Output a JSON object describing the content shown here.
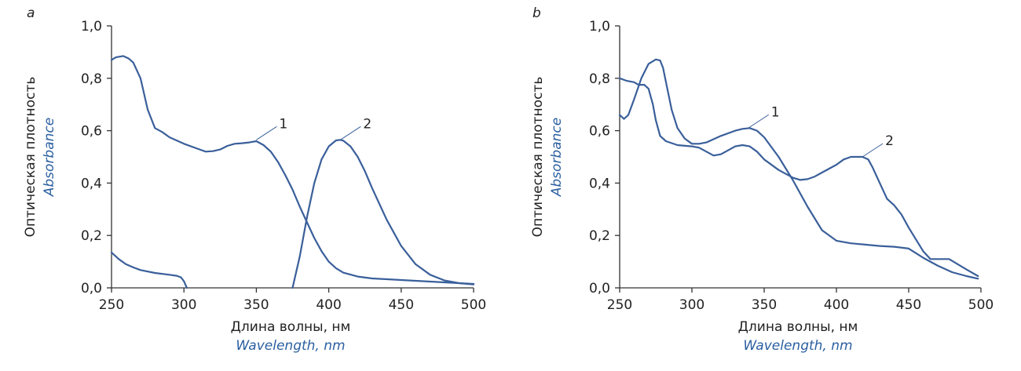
{
  "chart_data": [
    {
      "type": "line",
      "panel_label": "a",
      "xlabel": "Длина волны, нм",
      "xlabel_en": "Wavelength, nm",
      "ylabel": "Оптическая плотность",
      "ylabel_en": "Absorbance",
      "xlim": [
        250,
        500
      ],
      "ylim": [
        0,
        1
      ],
      "xticks": [
        250,
        300,
        350,
        400,
        450,
        500
      ],
      "xtick_labels": [
        "250",
        "300",
        "350",
        "400",
        "450",
        "500"
      ],
      "yticks": [
        0,
        0.2,
        0.4,
        0.6,
        0.8,
        1.0
      ],
      "ytick_labels": [
        "0,0",
        "0,2",
        "0,4",
        "0,6",
        "0,8",
        "1,0"
      ],
      "series": [
        {
          "name": "1",
          "label_at": [
            350,
            0.565
          ],
          "x": [
            250,
            253,
            258,
            262,
            265,
            270,
            275,
            280,
            285,
            290,
            300,
            310,
            315,
            320,
            325,
            330,
            335,
            340,
            345,
            350,
            355,
            360,
            365,
            370,
            375,
            380,
            385,
            390,
            395,
            400,
            405,
            410,
            420,
            430,
            450,
            470,
            490,
            500
          ],
          "y": [
            0.87,
            0.88,
            0.885,
            0.875,
            0.86,
            0.8,
            0.68,
            0.61,
            0.595,
            0.575,
            0.55,
            0.53,
            0.52,
            0.522,
            0.528,
            0.542,
            0.55,
            0.552,
            0.555,
            0.56,
            0.545,
            0.52,
            0.48,
            0.43,
            0.375,
            0.31,
            0.25,
            0.19,
            0.14,
            0.1,
            0.075,
            0.058,
            0.043,
            0.036,
            0.03,
            0.024,
            0.018,
            0.015
          ]
        },
        {
          "name": "2",
          "label_at": [
            408,
            0.565
          ],
          "x": [
            375,
            380,
            385,
            390,
            395,
            400,
            405,
            408,
            410,
            415,
            420,
            425,
            430,
            440,
            450,
            460,
            470,
            480,
            490,
            500
          ],
          "y": [
            0.0,
            0.12,
            0.27,
            0.4,
            0.49,
            0.54,
            0.563,
            0.565,
            0.562,
            0.54,
            0.5,
            0.445,
            0.38,
            0.26,
            0.16,
            0.09,
            0.05,
            0.028,
            0.018,
            0.013
          ]
        },
        {
          "name": "",
          "x": [
            250,
            255,
            260,
            265,
            270,
            280,
            290,
            295,
            298,
            300,
            302
          ],
          "y": [
            0.135,
            0.11,
            0.09,
            0.078,
            0.068,
            0.057,
            0.05,
            0.046,
            0.04,
            0.025,
            0.0
          ]
        }
      ]
    },
    {
      "type": "line",
      "panel_label": "b",
      "xlabel": "Длина волны, нм",
      "xlabel_en": "Wavelength, nm",
      "ylabel": "Оптическая плотность",
      "ylabel_en": "Absorbance",
      "xlim": [
        250,
        500
      ],
      "ylim": [
        0,
        1
      ],
      "xticks": [
        250,
        300,
        350,
        400,
        450,
        500
      ],
      "xtick_labels": [
        "250",
        "300",
        "350",
        "400",
        "450",
        "500"
      ],
      "yticks": [
        0,
        0.2,
        0.4,
        0.6,
        0.8,
        1.0
      ],
      "ytick_labels": [
        "0,0",
        "0,2",
        "0,4",
        "0,6",
        "0,8",
        "1,0"
      ],
      "series": [
        {
          "name": "1",
          "label_at": [
            339,
            0.61
          ],
          "x": [
            250,
            253,
            256,
            260,
            265,
            270,
            275,
            278,
            280,
            283,
            286,
            290,
            295,
            300,
            305,
            310,
            320,
            330,
            335,
            340,
            345,
            350,
            360,
            370,
            380,
            390,
            400,
            410,
            420,
            430,
            440,
            450,
            460,
            470,
            480,
            490,
            498
          ],
          "y": [
            0.66,
            0.645,
            0.66,
            0.72,
            0.8,
            0.855,
            0.872,
            0.868,
            0.84,
            0.76,
            0.68,
            0.61,
            0.57,
            0.55,
            0.55,
            0.555,
            0.58,
            0.6,
            0.607,
            0.61,
            0.6,
            0.575,
            0.5,
            0.41,
            0.31,
            0.22,
            0.18,
            0.17,
            0.165,
            0.16,
            0.157,
            0.15,
            0.115,
            0.085,
            0.06,
            0.045,
            0.035
          ]
        },
        {
          "name": "2",
          "label_at": [
            418,
            0.5
          ],
          "x": [
            250,
            255,
            260,
            263,
            267,
            270,
            273,
            275,
            278,
            282,
            290,
            300,
            305,
            310,
            315,
            320,
            325,
            330,
            335,
            340,
            345,
            350,
            360,
            370,
            375,
            380,
            385,
            390,
            395,
            400,
            405,
            410,
            418,
            422,
            425,
            430,
            435,
            440,
            445,
            450,
            460,
            465,
            470,
            475,
            478,
            490,
            498
          ],
          "y": [
            0.8,
            0.79,
            0.785,
            0.775,
            0.775,
            0.76,
            0.7,
            0.64,
            0.58,
            0.56,
            0.545,
            0.54,
            0.535,
            0.52,
            0.505,
            0.51,
            0.525,
            0.54,
            0.545,
            0.54,
            0.52,
            0.49,
            0.45,
            0.42,
            0.412,
            0.415,
            0.425,
            0.44,
            0.455,
            0.47,
            0.49,
            0.5,
            0.5,
            0.49,
            0.46,
            0.4,
            0.34,
            0.315,
            0.28,
            0.23,
            0.14,
            0.11,
            0.11,
            0.11,
            0.11,
            0.07,
            0.045
          ]
        }
      ]
    }
  ]
}
